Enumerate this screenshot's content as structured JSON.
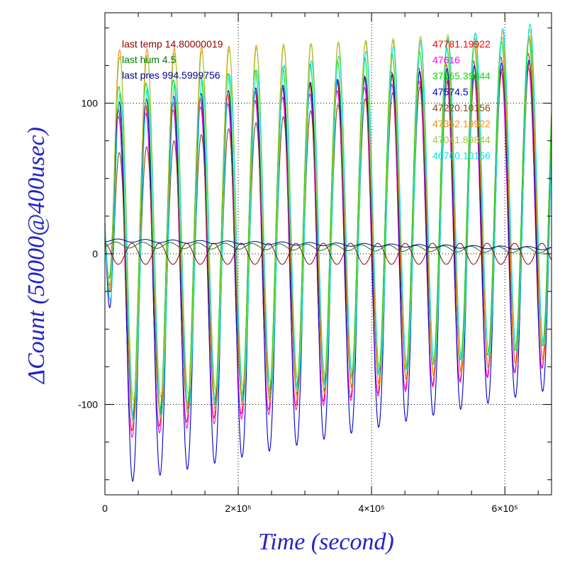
{
  "chart_data": {
    "type": "line",
    "xlabel": "Time (second)",
    "ylabel": "ΔCount (50000@400usec)",
    "xlim": [
      0,
      670000
    ],
    "ylim": [
      -160,
      160
    ],
    "x_ticks": [
      {
        "value": 0,
        "label": "0"
      },
      {
        "value": 200000,
        "label": "2×10⁵"
      },
      {
        "value": 400000,
        "label": "4×10⁵"
      },
      {
        "value": 600000,
        "label": "6×10⁵"
      }
    ],
    "y_ticks": [
      {
        "value": -100,
        "label": "-100"
      },
      {
        "value": 0,
        "label": "0"
      },
      {
        "value": 100,
        "label": "100"
      }
    ],
    "grid": "dotted at labeled ticks",
    "oscillation_period_s": 41000,
    "oscillation_phase_s": 20000,
    "left_annotations": [
      {
        "text": "last temp 14.80000019",
        "color": "#8b0000"
      },
      {
        "text": "last hum 4.5",
        "color": "#007a00"
      },
      {
        "text": "last pres 994.5999756",
        "color": "#00008b"
      }
    ],
    "series": [
      {
        "name": "47781.19922",
        "color": "#ff0000",
        "amp_start": 95,
        "amp_end": 135,
        "offset": 0,
        "min_start": -120,
        "min_end": -75
      },
      {
        "name": "47616",
        "color": "#ff00ff",
        "amp_start": 90,
        "amp_end": 125,
        "offset": 0,
        "min_start": -125,
        "min_end": -75
      },
      {
        "name": "37165.39844",
        "color": "#00e000",
        "amp_start": 110,
        "amp_end": 145,
        "offset": 0,
        "min_start": -110,
        "min_end": -60
      },
      {
        "name": "47574.5",
        "color": "#0000cd",
        "amp_start": 100,
        "amp_end": 130,
        "offset": 0,
        "min_start": -155,
        "min_end": -90
      },
      {
        "name": "47220.10156",
        "color": "#8b4513",
        "amp_start": 65,
        "amp_end": 130,
        "offset": 0,
        "min_start": -110,
        "min_end": -70
      },
      {
        "name": "47352.19922",
        "color": "#ff8c00",
        "amp_start": 135,
        "amp_end": 145,
        "offset": 0,
        "min_start": -115,
        "min_end": -70
      },
      {
        "name": "47041.89844",
        "color": "#9acd32",
        "amp_start": 130,
        "amp_end": 150,
        "offset": 0,
        "min_start": -100,
        "min_end": -60
      },
      {
        "name": "46760.10156",
        "color": "#00e5ee",
        "amp_start": 105,
        "amp_end": 155,
        "offset": 0,
        "min_start": -115,
        "min_end": -60
      }
    ],
    "ambient_series": [
      {
        "label": "temp",
        "color": "#8b0000",
        "amp": 7,
        "center": 0,
        "phase_shift": 0.5
      },
      {
        "label": "hum",
        "color": "#007a00",
        "amp": 2,
        "center": 6,
        "phase_shift": 0.1
      },
      {
        "label": "pres",
        "color": "#00008b",
        "amp": 1,
        "center": 9,
        "phase_shift": 0.0
      }
    ]
  }
}
